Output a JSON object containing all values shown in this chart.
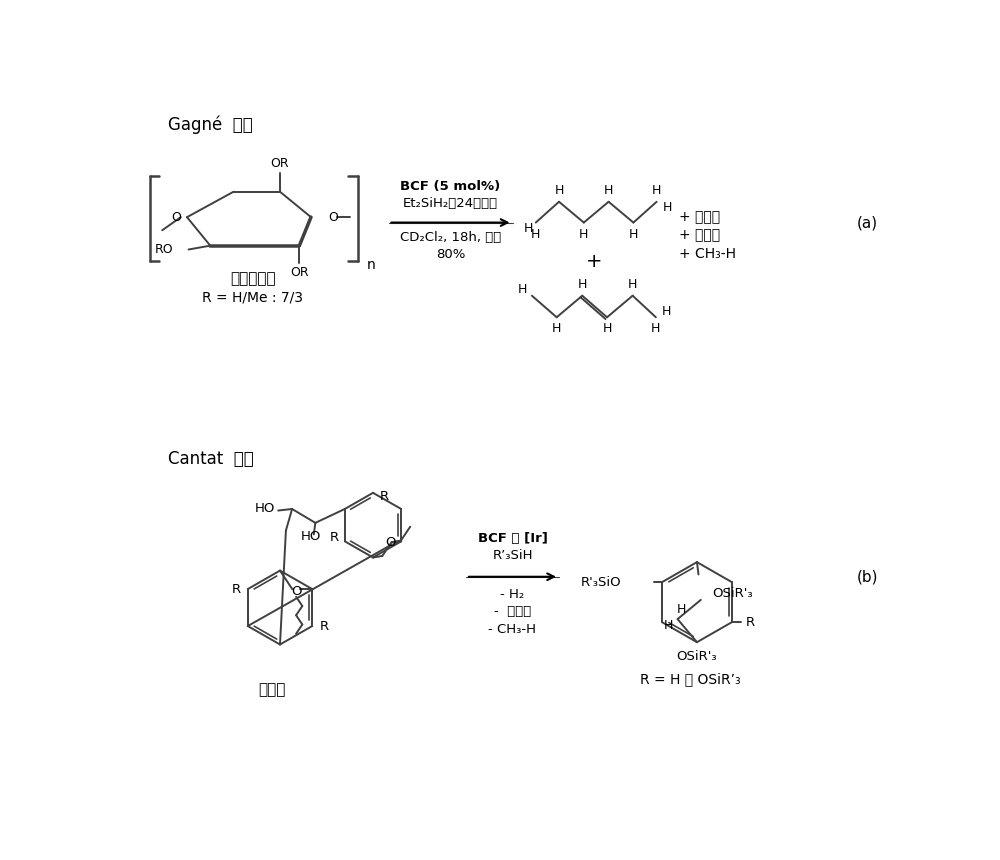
{
  "bg_color": "#ffffff",
  "lc": "#404040",
  "title_a": "Gagné  等人",
  "title_b": "Cantat  等人",
  "methyl_cellulose": "甲基纤维素",
  "r_ratio": "R = H/Me : 7/3",
  "lignin": "木质素",
  "rxn_a1": "BCF (5 mol%)",
  "rxn_a2": "Et₂SiH₂（24当量）",
  "rxn_a3": "CD₂Cl₂, 18h, 室温",
  "rxn_a4": "80%",
  "plus_iso": "+ 异构体",
  "plus_sil": "+ 硅氧烷",
  "plus_ch3h": "+ CH₃-H",
  "rxn_b1": "BCF 或 [Ir]",
  "rxn_b2": "R’₃SiH",
  "minus_h2": "- H₂",
  "minus_sil": "-  硅氧烷",
  "minus_ch3h": "- CH₃-H",
  "r_def": "R = H 或 OSiR’₃"
}
